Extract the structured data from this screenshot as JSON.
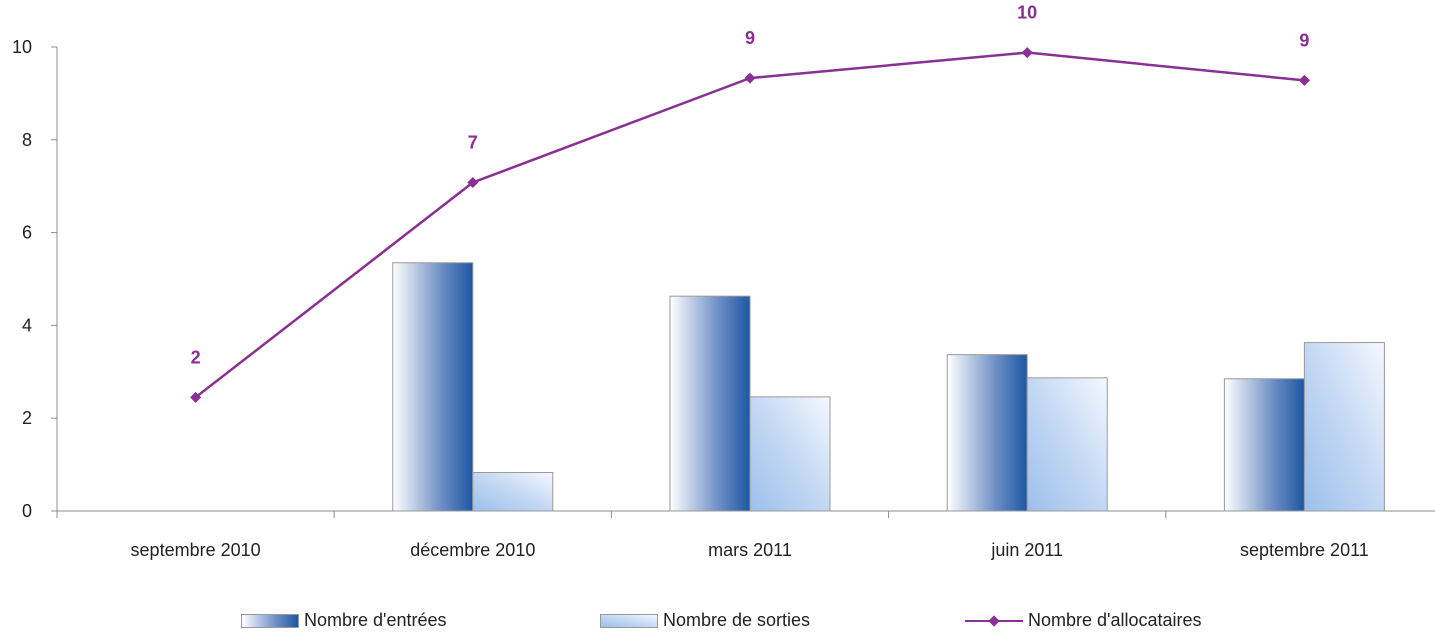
{
  "chart_data": {
    "type": "bar",
    "categories": [
      "septembre 2010",
      "décembre 2010",
      "mars 2011",
      "juin 2011",
      "septembre 2011"
    ],
    "ylim": [
      0,
      10
    ],
    "yticks": [
      0,
      2,
      4,
      6,
      8,
      10
    ],
    "series": [
      {
        "name": "Nombre d'entrées",
        "type": "bar",
        "values": [
          null,
          5.35,
          4.63,
          3.37,
          2.85
        ]
      },
      {
        "name": "Nombre de sorties",
        "type": "bar",
        "values": [
          null,
          0.83,
          2.46,
          2.87,
          3.63
        ]
      },
      {
        "name": "Nombre d'allocataires",
        "type": "line",
        "values": [
          2.45,
          7.08,
          9.33,
          9.88,
          9.28
        ],
        "labels": [
          "2",
          "7",
          "9",
          "10",
          "9"
        ]
      }
    ],
    "legend_position": "bottom",
    "grid": false
  },
  "colors": {
    "entrees_dark": "#1d57a3",
    "entrees_light": "#ffffff",
    "sorties_dark": "#9cc0ec",
    "sorties_light": "#f4f8ff",
    "line": "#8a2f93",
    "axis": "#8c8c8c"
  }
}
